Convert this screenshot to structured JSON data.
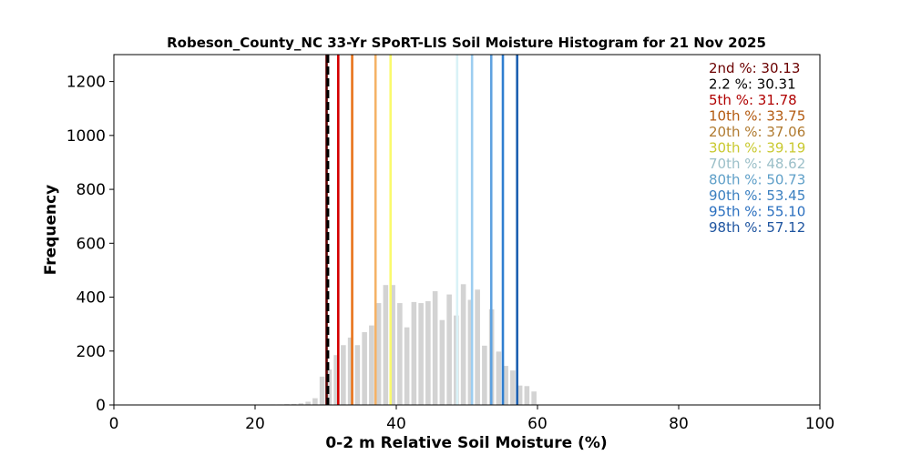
{
  "chart_data": {
    "type": "bar",
    "title": "Robeson_County_NC 33-Yr SPoRT-LIS Soil Moisture Histogram for 21 Nov 2025",
    "xlabel": "0-2 m Relative Soil Moisture (%)",
    "ylabel": "Frequency",
    "xlim": [
      0,
      100
    ],
    "ylim": [
      0,
      1300
    ],
    "xticks": [
      0,
      20,
      40,
      60,
      80,
      100
    ],
    "yticks": [
      0,
      200,
      400,
      600,
      800,
      1000,
      1200
    ],
    "bar_color": "#d3d3d3",
    "bins": [
      {
        "x": 20.5,
        "count": 1
      },
      {
        "x": 21.5,
        "count": 1
      },
      {
        "x": 22.5,
        "count": 2
      },
      {
        "x": 23.5,
        "count": 2
      },
      {
        "x": 24.5,
        "count": 3
      },
      {
        "x": 25.5,
        "count": 4
      },
      {
        "x": 26.5,
        "count": 6
      },
      {
        "x": 27.5,
        "count": 12
      },
      {
        "x": 28.5,
        "count": 25
      },
      {
        "x": 29.5,
        "count": 105
      },
      {
        "x": 30.5,
        "count": 132
      },
      {
        "x": 31.5,
        "count": 185
      },
      {
        "x": 32.5,
        "count": 222
      },
      {
        "x": 33.5,
        "count": 250
      },
      {
        "x": 34.5,
        "count": 222
      },
      {
        "x": 35.5,
        "count": 270
      },
      {
        "x": 36.5,
        "count": 295
      },
      {
        "x": 37.5,
        "count": 378
      },
      {
        "x": 38.5,
        "count": 445
      },
      {
        "x": 39.5,
        "count": 445
      },
      {
        "x": 40.5,
        "count": 378
      },
      {
        "x": 41.5,
        "count": 288
      },
      {
        "x": 42.5,
        "count": 382
      },
      {
        "x": 43.5,
        "count": 378
      },
      {
        "x": 44.5,
        "count": 385
      },
      {
        "x": 45.5,
        "count": 422
      },
      {
        "x": 46.5,
        "count": 315
      },
      {
        "x": 47.5,
        "count": 410
      },
      {
        "x": 48.5,
        "count": 332
      },
      {
        "x": 49.5,
        "count": 448
      },
      {
        "x": 50.5,
        "count": 390
      },
      {
        "x": 51.5,
        "count": 428
      },
      {
        "x": 52.5,
        "count": 220
      },
      {
        "x": 53.5,
        "count": 355
      },
      {
        "x": 54.5,
        "count": 198
      },
      {
        "x": 55.5,
        "count": 145
      },
      {
        "x": 56.5,
        "count": 128
      },
      {
        "x": 57.5,
        "count": 72
      },
      {
        "x": 58.5,
        "count": 70
      },
      {
        "x": 59.5,
        "count": 50
      }
    ],
    "percentiles": [
      {
        "label": "2nd %",
        "value": "30.13",
        "x": 30.13,
        "color": "#5c0000",
        "text_color": "#6b0000",
        "dashed": false
      },
      {
        "label": "2.2 %",
        "value": "30.31",
        "x": 30.31,
        "color": "#000000",
        "text_color": "#000000",
        "dashed": true
      },
      {
        "label": "5th %",
        "value": "31.78",
        "x": 31.78,
        "color": "#d40000",
        "text_color": "#b00000",
        "dashed": false
      },
      {
        "label": "10th %",
        "value": "33.75",
        "x": 33.75,
        "color": "#e8731a",
        "text_color": "#b35a10",
        "dashed": false
      },
      {
        "label": "20th %",
        "value": "37.06",
        "x": 37.06,
        "color": "#f5b266",
        "text_color": "#b07a30",
        "dashed": false
      },
      {
        "label": "30th %",
        "value": "39.19",
        "x": 39.19,
        "color": "#fafa6e",
        "text_color": "#c9c930",
        "dashed": false
      },
      {
        "label": "70th %",
        "value": "48.62",
        "x": 48.62,
        "color": "#d9f2f7",
        "text_color": "#9bbfc8",
        "dashed": false
      },
      {
        "label": "80th %",
        "value": "50.73",
        "x": 50.73,
        "color": "#9ccdf0",
        "text_color": "#5e9fc8",
        "dashed": false
      },
      {
        "label": "90th %",
        "value": "53.45",
        "x": 53.45,
        "color": "#5fa2e0",
        "text_color": "#3a7fc0",
        "dashed": false
      },
      {
        "label": "95th %",
        "value": "55.10",
        "x": 55.1,
        "color": "#2f7ed0",
        "text_color": "#2a6fbf",
        "dashed": false
      },
      {
        "label": "98th %",
        "value": "57.12",
        "x": 57.12,
        "color": "#1c5fb0",
        "text_color": "#1f55a0",
        "dashed": false
      }
    ]
  }
}
